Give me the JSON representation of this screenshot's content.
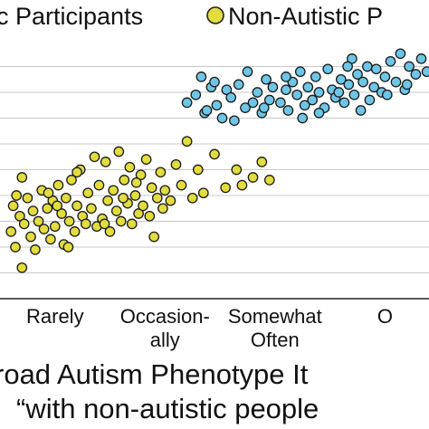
{
  "chart_data": {
    "type": "scatter",
    "title": "",
    "legend": {
      "placement": "top",
      "entries": [
        {
          "label": "c Participants",
          "color": "#6ec6e6"
        },
        {
          "label": "Non-Autistic P",
          "color": "#e2dc3e"
        }
      ]
    },
    "xlabel_lines": [
      "road Autism Phenotype It",
      "“with non-autistic people"
    ],
    "x_ticks": [
      {
        "lines": [
          "Rarely"
        ],
        "x": 2
      },
      {
        "lines": [
          "Occasion-",
          "ally"
        ],
        "x": 3
      },
      {
        "lines": [
          "Somewhat",
          "Often"
        ],
        "x": 4
      },
      {
        "lines": [
          "O"
        ],
        "x": 5
      }
    ],
    "xlim": [
      1.5,
      5.4
    ],
    "ylim": [
      0,
      10
    ],
    "grid": "horizontal",
    "y_gridlines": [
      1,
      2,
      3,
      4,
      5,
      6,
      7,
      8,
      9
    ],
    "series": [
      {
        "name": "c Participants",
        "color": "#6ec6e6",
        "points": [
          [
            3.2,
            7.6
          ],
          [
            3.28,
            7.9
          ],
          [
            3.33,
            8.6
          ],
          [
            3.36,
            7.2
          ],
          [
            3.42,
            8.2
          ],
          [
            3.38,
            7.3
          ],
          [
            3.47,
            7.5
          ],
          [
            3.52,
            7.0
          ],
          [
            3.56,
            8.1
          ],
          [
            3.6,
            7.8
          ],
          [
            3.63,
            6.9
          ],
          [
            3.67,
            8.3
          ],
          [
            3.73,
            7.4
          ],
          [
            3.75,
            8.8
          ],
          [
            3.8,
            7.6
          ],
          [
            3.84,
            8.0
          ],
          [
            3.88,
            7.2
          ],
          [
            3.92,
            8.5
          ],
          [
            3.95,
            7.7
          ],
          [
            3.98,
            8.2
          ],
          [
            4.05,
            7.6
          ],
          [
            4.1,
            8.1
          ],
          [
            4.12,
            7.3
          ],
          [
            4.16,
            8.4
          ],
          [
            4.2,
            7.9
          ],
          [
            4.23,
            8.8
          ],
          [
            4.27,
            7.5
          ],
          [
            4.3,
            8.2
          ],
          [
            4.34,
            7.7
          ],
          [
            4.37,
            8.6
          ],
          [
            4.4,
            8.0
          ],
          [
            4.45,
            7.4
          ],
          [
            4.48,
            8.9
          ],
          [
            4.52,
            8.1
          ],
          [
            4.55,
            7.8
          ],
          [
            4.6,
            8.5
          ],
          [
            4.63,
            7.6
          ],
          [
            4.67,
            8.3
          ],
          [
            4.7,
            9.3
          ],
          [
            4.72,
            7.9
          ],
          [
            4.75,
            8.7
          ],
          [
            4.78,
            7.3
          ],
          [
            4.8,
            8.4
          ],
          [
            4.84,
            9.0
          ],
          [
            4.86,
            7.7
          ],
          [
            4.9,
            8.2
          ],
          [
            4.92,
            8.9
          ],
          [
            4.97,
            8.0
          ],
          [
            5.0,
            8.6
          ],
          [
            5.05,
            9.2
          ],
          [
            5.1,
            8.4
          ],
          [
            5.14,
            9.5
          ],
          [
            5.18,
            8.1
          ],
          [
            5.22,
            9.0
          ],
          [
            5.28,
            8.7
          ],
          [
            5.33,
            9.3
          ],
          [
            5.38,
            8.8
          ],
          [
            4.25,
            7.0
          ],
          [
            4.4,
            7.2
          ],
          [
            4.58,
            8.0
          ],
          [
            3.45,
            8.4
          ],
          [
            3.9,
            7.4
          ],
          [
            4.1,
            8.6
          ],
          [
            4.66,
            9.0
          ],
          [
            5.02,
            7.9
          ],
          [
            5.2,
            8.3
          ]
        ]
      },
      {
        "name": "Non-Autistic P",
        "color": "#e2dc3e",
        "points": [
          [
            1.6,
            2.6
          ],
          [
            1.62,
            3.6
          ],
          [
            1.65,
            4.0
          ],
          [
            1.68,
            3.2
          ],
          [
            1.7,
            4.7
          ],
          [
            1.72,
            2.9
          ],
          [
            1.75,
            3.9
          ],
          [
            1.78,
            2.4
          ],
          [
            1.8,
            3.4
          ],
          [
            1.82,
            1.9
          ],
          [
            1.85,
            3.0
          ],
          [
            1.88,
            4.2
          ],
          [
            1.9,
            2.7
          ],
          [
            1.93,
            3.5
          ],
          [
            1.96,
            2.3
          ],
          [
            1.98,
            3.8
          ],
          [
            2.0,
            2.8
          ],
          [
            2.03,
            4.4
          ],
          [
            2.06,
            3.3
          ],
          [
            2.08,
            2.1
          ],
          [
            2.1,
            3.9
          ],
          [
            2.13,
            3.0
          ],
          [
            2.15,
            4.6
          ],
          [
            2.18,
            2.6
          ],
          [
            2.2,
            3.6
          ],
          [
            2.23,
            5.0
          ],
          [
            2.25,
            3.2
          ],
          [
            2.28,
            2.9
          ],
          [
            2.3,
            4.1
          ],
          [
            2.33,
            3.5
          ],
          [
            2.36,
            5.5
          ],
          [
            2.38,
            2.8
          ],
          [
            2.4,
            4.4
          ],
          [
            2.43,
            3.1
          ],
          [
            2.46,
            5.3
          ],
          [
            2.48,
            3.8
          ],
          [
            2.5,
            2.6
          ],
          [
            2.53,
            4.2
          ],
          [
            2.56,
            3.4
          ],
          [
            2.58,
            5.7
          ],
          [
            2.6,
            3.0
          ],
          [
            2.63,
            4.6
          ],
          [
            2.66,
            3.7
          ],
          [
            2.68,
            5.1
          ],
          [
            2.7,
            2.9
          ],
          [
            2.73,
            4.0
          ],
          [
            2.76,
            3.3
          ],
          [
            2.78,
            4.8
          ],
          [
            2.8,
            3.6
          ],
          [
            2.83,
            5.4
          ],
          [
            2.86,
            3.2
          ],
          [
            2.88,
            4.3
          ],
          [
            2.9,
            2.4
          ],
          [
            2.93,
            3.9
          ],
          [
            2.96,
            4.9
          ],
          [
            2.98,
            3.5
          ],
          [
            3.0,
            4.2
          ],
          [
            3.05,
            3.8
          ],
          [
            3.1,
            5.2
          ],
          [
            3.15,
            4.4
          ],
          [
            3.2,
            6.1
          ],
          [
            3.25,
            3.9
          ],
          [
            3.3,
            5.0
          ],
          [
            3.35,
            4.1
          ],
          [
            3.45,
            5.6
          ],
          [
            3.55,
            4.3
          ],
          [
            3.65,
            5.0
          ],
          [
            3.7,
            4.4
          ],
          [
            3.8,
            4.7
          ],
          [
            3.88,
            5.3
          ],
          [
            3.95,
            4.6
          ],
          [
            1.64,
            2.0
          ],
          [
            1.7,
            1.2
          ],
          [
            2.12,
            2.0
          ],
          [
            2.45,
            2.9
          ],
          [
            2.2,
            4.9
          ],
          [
            2.02,
            3.6
          ],
          [
            1.94,
            4.1
          ],
          [
            2.62,
            3.9
          ],
          [
            2.74,
            4.5
          ]
        ]
      }
    ]
  }
}
